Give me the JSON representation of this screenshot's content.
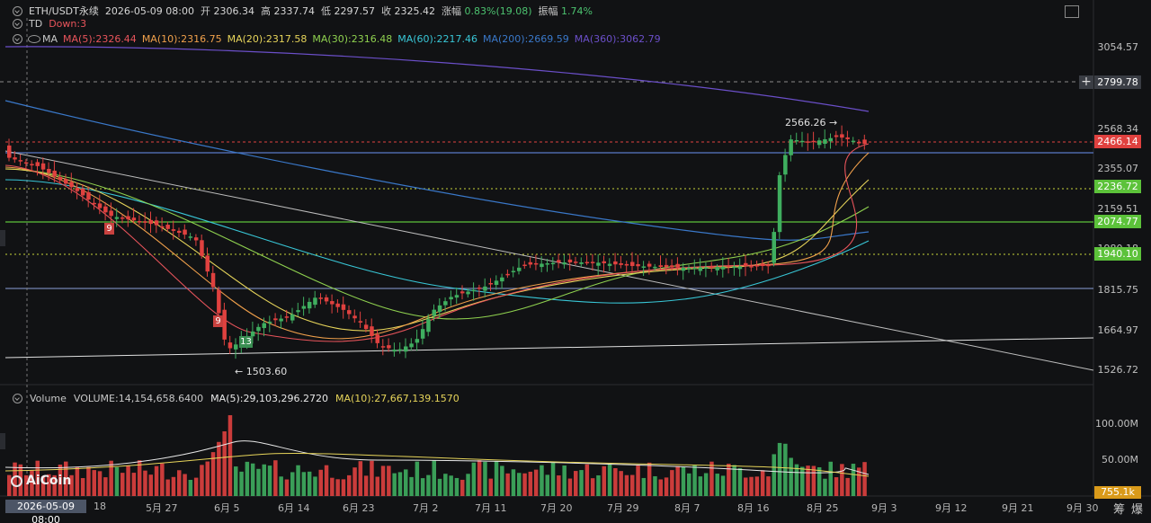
{
  "header": {
    "symbol": "ETH/USDT永续",
    "datetime": "2026-05-09 08:00",
    "open_label": "开",
    "open": "2306.34",
    "high_label": "高",
    "high": "2337.74",
    "low_label": "低",
    "low": "2297.57",
    "close_label": "收",
    "close": "2325.42",
    "change_label": "涨幅",
    "change": "0.83%(19.08)",
    "amp_label": "振幅",
    "amp": "1.74%"
  },
  "td": {
    "label": "TD",
    "value": "Down:3"
  },
  "ma": {
    "label": "MA",
    "items": [
      {
        "text": "MA(5):2326.44",
        "color": "#e8545b"
      },
      {
        "text": "MA(10):2316.75",
        "color": "#f0a04b"
      },
      {
        "text": "MA(20):2317.58",
        "color": "#e6d45a"
      },
      {
        "text": "MA(30):2316.48",
        "color": "#8fd14f"
      },
      {
        "text": "MA(60):2217.46",
        "color": "#38c6d6"
      },
      {
        "text": "MA(200):2669.59",
        "color": "#3a78c9"
      },
      {
        "text": "MA(360):3062.79",
        "color": "#6b4fc9"
      }
    ]
  },
  "volume_header": {
    "label": "Volume",
    "items": [
      {
        "text": "VOLUME:14,154,658.6400",
        "color": "#c8c8c8"
      },
      {
        "text": "MA(5):29,103,296.2720",
        "color": "#e8e8e8"
      },
      {
        "text": "MA(10):27,667,139.1570",
        "color": "#e6d45a"
      }
    ]
  },
  "price_axis": [
    "3054.57",
    "2568.34",
    "2355.07",
    "2159.51",
    "1980.18",
    "1815.75",
    "1664.97",
    "1526.72"
  ],
  "price_tags": [
    {
      "text": "2799.78",
      "color": "#3a3d44"
    },
    {
      "text": "2466.14",
      "color": "#e0413f"
    },
    {
      "text": "2236.72",
      "color": "#5cc23a"
    },
    {
      "text": "2074.77",
      "color": "#5cc23a"
    },
    {
      "text": "1940.10",
      "color": "#5cc23a"
    }
  ],
  "volume_axis": [
    "100.00M",
    "50.00M"
  ],
  "volume_tag": {
    "text": "755.1k",
    "color": "#d99a1a"
  },
  "x_axis": [
    "18",
    "5月 27",
    "6月 5",
    "6月 14",
    "6月 23",
    "7月 2",
    "7月 11",
    "7月 20",
    "7月 29",
    "8月 7",
    "8月 16",
    "8月 25",
    "9月 3",
    "9月 12",
    "9月 21",
    "9月 30"
  ],
  "crosshair_date": "2026-05-09 08:00",
  "annotations": {
    "high": "2566.26 →",
    "low": "← 1503.60",
    "td_a": "9",
    "td_b": "9",
    "td_c": "13"
  },
  "logo": "AiCoin",
  "bottom_right": [
    "筹",
    "爆"
  ]
}
